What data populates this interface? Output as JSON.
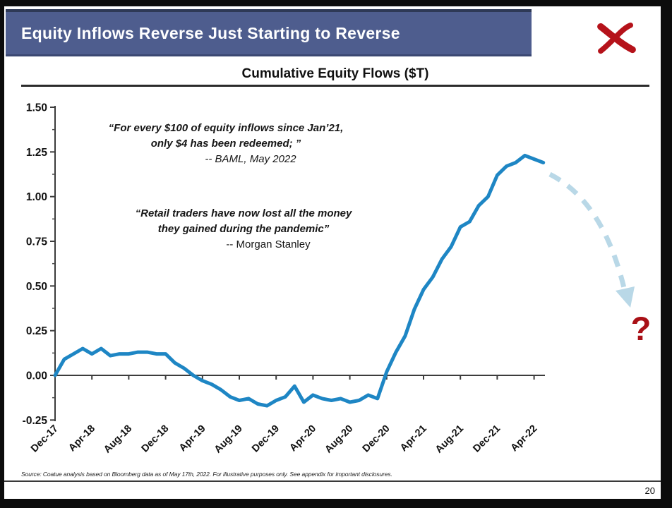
{
  "slide": {
    "header": {
      "title": "Equity Inflows Reverse Just Starting to Reverse"
    },
    "logo": {
      "label": "coatue-x-logo",
      "color": "#b5121a"
    },
    "source_note": "Source: Coatue analysis based on Bloomberg data as of May 17th, 2022. For illustrative purposes only. See appendix for important disclosures.",
    "page_number": "20"
  },
  "quotes": [
    {
      "lines": [
        "“For every $100 of equity inflows since Jan’21,",
        "only $4 has been redeemed; ”"
      ],
      "attribution": "-- BAML, May 2022"
    },
    {
      "lines": [
        "“Retail traders have now lost all the money",
        "they gained during the pandemic”"
      ],
      "attribution": "-- Morgan Stanley"
    }
  ],
  "chart_data": {
    "type": "line",
    "title": "Cumulative Equity Flows ($T)",
    "xlabel": "",
    "ylabel": "",
    "ylim": [
      -0.25,
      1.5
    ],
    "grid": false,
    "x_tick_rotation_deg": 45,
    "line_color": "#1e86c4",
    "x": [
      "Dec-17",
      "Jan-18",
      "Feb-18",
      "Mar-18",
      "Apr-18",
      "May-18",
      "Jun-18",
      "Jul-18",
      "Aug-18",
      "Sep-18",
      "Oct-18",
      "Nov-18",
      "Dec-18",
      "Jan-19",
      "Feb-19",
      "Mar-19",
      "Apr-19",
      "May-19",
      "Jun-19",
      "Jul-19",
      "Aug-19",
      "Sep-19",
      "Oct-19",
      "Nov-19",
      "Dec-19",
      "Jan-20",
      "Feb-20",
      "Mar-20",
      "Apr-20",
      "May-20",
      "Jun-20",
      "Jul-20",
      "Aug-20",
      "Sep-20",
      "Oct-20",
      "Nov-20",
      "Dec-20",
      "Jan-21",
      "Feb-21",
      "Mar-21",
      "Apr-21",
      "May-21",
      "Jun-21",
      "Jul-21",
      "Aug-21",
      "Sep-21",
      "Oct-21",
      "Nov-21",
      "Dec-21",
      "Jan-22",
      "Feb-22",
      "Mar-22",
      "Apr-22",
      "May-22"
    ],
    "values": [
      0.0,
      0.09,
      0.12,
      0.15,
      0.12,
      0.15,
      0.11,
      0.12,
      0.12,
      0.13,
      0.13,
      0.12,
      0.12,
      0.07,
      0.04,
      0.0,
      -0.03,
      -0.05,
      -0.08,
      -0.12,
      -0.14,
      -0.13,
      -0.16,
      -0.17,
      -0.14,
      -0.12,
      -0.06,
      -0.15,
      -0.11,
      -0.13,
      -0.14,
      -0.13,
      -0.15,
      -0.14,
      -0.11,
      -0.13,
      0.02,
      0.13,
      0.22,
      0.37,
      0.48,
      0.55,
      0.65,
      0.72,
      0.83,
      0.86,
      0.95,
      1.0,
      1.12,
      1.17,
      1.19,
      1.23,
      1.21,
      1.19
    ],
    "x_tick_labels": [
      "Dec-17",
      "Apr-18",
      "Aug-18",
      "Dec-18",
      "Apr-19",
      "Aug-19",
      "Dec-19",
      "Apr-20",
      "Aug-20",
      "Dec-20",
      "Apr-21",
      "Aug-21",
      "Dec-21",
      "Apr-22"
    ],
    "y_ticks": [
      "1.50",
      "1.25",
      "1.00",
      "0.75",
      "0.50",
      "0.25",
      "0.00",
      "-0.25"
    ],
    "annotations": {
      "projection_arrow": {
        "style": "dashed",
        "color": "#b9d8e7",
        "direction": "down-right"
      },
      "question_mark": {
        "text": "?",
        "color": "#a91016"
      }
    }
  }
}
